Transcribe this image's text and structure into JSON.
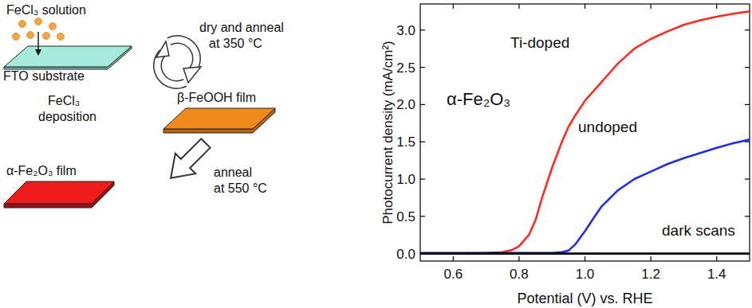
{
  "chart_data": {
    "type": "line",
    "annotation": "α-Fe₂O₃",
    "x_label": "Potential (V) vs. RHE",
    "y_label": "Photocurrent density (mA/cm²)",
    "x": [
      0.5,
      0.6,
      0.7,
      0.75,
      0.78,
      0.8,
      0.83,
      0.85,
      0.87,
      0.9,
      0.93,
      0.95,
      0.97,
      1.0,
      1.03,
      1.05,
      1.1,
      1.15,
      1.2,
      1.25,
      1.3,
      1.35,
      1.4,
      1.45,
      1.5
    ],
    "xlim": [
      0.5,
      1.5
    ],
    "xticks": [
      0.6,
      0.8,
      {
        "value": 1.0,
        "label": "1.0"
      },
      1.2,
      1.4
    ],
    "ylim": [
      -0.1,
      3.35
    ],
    "yticks": [
      {
        "value": 0.0,
        "label": "0.0"
      },
      0.5,
      {
        "value": 1.0,
        "label": "1.0"
      },
      1.5,
      {
        "value": 2.0,
        "label": "2.0"
      },
      2.5,
      {
        "value": 3.0,
        "label": "3.0"
      }
    ],
    "grid": false,
    "series": [
      {
        "name": "Ti-doped",
        "color": "#ff2a1f",
        "values": [
          0,
          0,
          0.01,
          0.02,
          0.05,
          0.1,
          0.25,
          0.45,
          0.75,
          1.15,
          1.5,
          1.7,
          1.85,
          2.05,
          2.2,
          2.3,
          2.55,
          2.75,
          2.88,
          2.98,
          3.07,
          3.13,
          3.18,
          3.22,
          3.25
        ]
      },
      {
        "name": "undoped",
        "color": "#1f2fe0",
        "values": [
          0.01,
          0.01,
          0.01,
          0.01,
          0.01,
          0.01,
          0.01,
          0.01,
          0.01,
          0.01,
          0.02,
          0.04,
          0.12,
          0.3,
          0.5,
          0.63,
          0.85,
          1.0,
          1.1,
          1.2,
          1.28,
          1.35,
          1.42,
          1.48,
          1.53
        ]
      },
      {
        "name": "dark scans",
        "color": "#000000",
        "values": [
          0,
          0,
          0,
          0,
          0,
          0,
          0,
          0,
          0,
          0,
          0,
          0,
          0,
          0,
          0,
          0,
          0,
          0,
          0,
          0,
          0,
          0,
          0,
          0,
          0
        ]
      }
    ]
  },
  "diagram": {
    "solution_label": "FeCl₃ solution",
    "substrate_label": "FTO substrate",
    "cycle_forward": [
      "dry and anneal",
      "at 350 °C"
    ],
    "cycle_back": [
      "FeCl₃",
      "deposition"
    ],
    "intermediate_label": "β-FeOOH film",
    "final_step": [
      "anneal",
      "at 550 °C"
    ],
    "final_label": "α-Fe₂O₃ film"
  }
}
